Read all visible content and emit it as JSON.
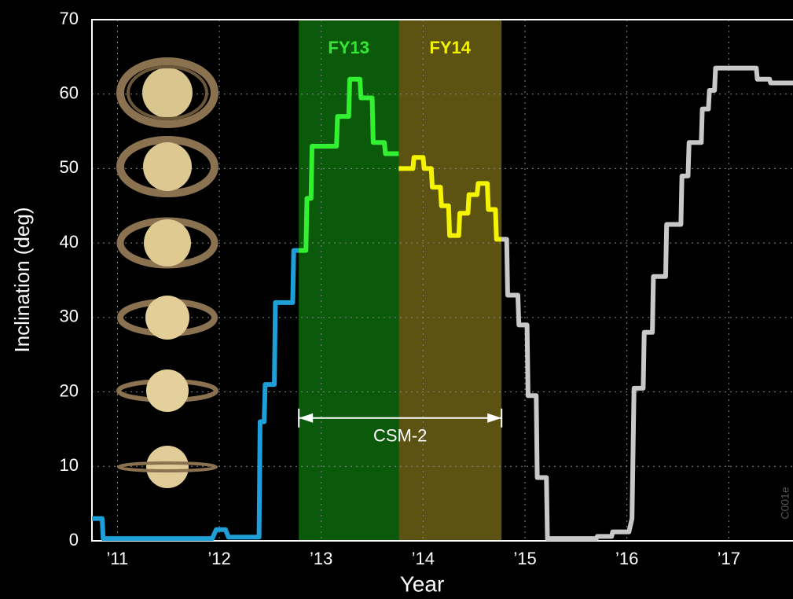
{
  "chart_data": {
    "type": "line",
    "xlabel": "Year",
    "ylabel": "Inclination (deg)",
    "xlim": [
      2010.75,
      2017.63
    ],
    "ylim": [
      0,
      70
    ],
    "xticks": [
      {
        "value": 2011,
        "label": "’11"
      },
      {
        "value": 2012,
        "label": "’12"
      },
      {
        "value": 2013,
        "label": "’13"
      },
      {
        "value": 2014,
        "label": "’14"
      },
      {
        "value": 2015,
        "label": "’15"
      },
      {
        "value": 2016,
        "label": "’16"
      },
      {
        "value": 2017,
        "label": "’17"
      }
    ],
    "yticks": [
      0,
      10,
      20,
      30,
      40,
      50,
      60,
      70
    ],
    "grid": true,
    "bands": [
      {
        "label": "FY13",
        "start": 2012.78,
        "end": 2013.76,
        "color": "#0b5a0b",
        "label_color": "#33e833"
      },
      {
        "label": "FY14",
        "start": 2013.76,
        "end": 2014.77,
        "color": "#5c5212",
        "label_color": "#f4f400"
      }
    ],
    "annotations": [
      {
        "text": "CSM-2",
        "start": 2012.78,
        "end": 2014.77,
        "y": 16.5
      }
    ],
    "watermark": "C001e",
    "series": [
      {
        "color": "#1e9fd8",
        "x": [
          2010.75,
          2010.85,
          2010.86,
          2011.93,
          2011.97,
          2012.06,
          2012.09,
          2012.39,
          2012.4,
          2012.44,
          2012.45,
          2012.54,
          2012.55,
          2012.72,
          2012.73,
          2012.78
        ],
        "values": [
          3,
          3,
          0.3,
          0.3,
          1.5,
          1.5,
          0.5,
          0.5,
          16,
          16,
          21,
          21,
          32,
          32,
          39,
          39
        ]
      },
      {
        "color": "#33f033",
        "x": [
          2012.78,
          2012.85,
          2012.86,
          2012.9,
          2012.91,
          2013.15,
          2013.16,
          2013.27,
          2013.28,
          2013.38,
          2013.39,
          2013.5,
          2013.51,
          2013.62,
          2013.63,
          2013.76
        ],
        "values": [
          39,
          39,
          46,
          46,
          53,
          53,
          57,
          57,
          62,
          62,
          59.5,
          59.5,
          53.5,
          53.5,
          52,
          52
        ]
      },
      {
        "color": "#f4f400",
        "x": [
          2013.76,
          2013.9,
          2013.91,
          2014.0,
          2014.01,
          2014.08,
          2014.09,
          2014.17,
          2014.18,
          2014.25,
          2014.26,
          2014.35,
          2014.36,
          2014.44,
          2014.45,
          2014.53,
          2014.54,
          2014.63,
          2014.64,
          2014.71,
          2014.72,
          2014.77
        ],
        "values": [
          50,
          50,
          51.5,
          51.5,
          50,
          50,
          47.5,
          47.5,
          45,
          45,
          41,
          41,
          44,
          44,
          46.5,
          46.5,
          48,
          48,
          44.5,
          44.5,
          40.5,
          40.5
        ]
      },
      {
        "color": "#c8c8c8",
        "x": [
          2014.77,
          2014.82,
          2014.83,
          2014.93,
          2014.94,
          2015.02,
          2015.03,
          2015.11,
          2015.12,
          2015.21,
          2015.22,
          2015.7,
          2015.71,
          2015.85,
          2015.86,
          2016.02,
          2016.05,
          2016.07,
          2016.16,
          2016.17,
          2016.25,
          2016.26,
          2016.38,
          2016.39,
          2016.53,
          2016.54,
          2016.6,
          2016.61,
          2016.73,
          2016.74,
          2016.8,
          2016.81,
          2016.86,
          2016.87,
          2017.27,
          2017.28,
          2017.4,
          2017.41,
          2017.63
        ],
        "values": [
          40.5,
          40.5,
          33,
          33,
          29,
          29,
          19.5,
          19.5,
          8.5,
          8.5,
          0.3,
          0.3,
          0.6,
          0.6,
          1.2,
          1.2,
          3,
          20.5,
          20.5,
          28,
          28,
          35.5,
          35.5,
          42.5,
          42.5,
          49,
          49,
          53.5,
          53.5,
          58,
          58,
          60.5,
          60.5,
          63.5,
          63.5,
          62,
          62,
          61.5,
          61.5
        ]
      }
    ]
  }
}
